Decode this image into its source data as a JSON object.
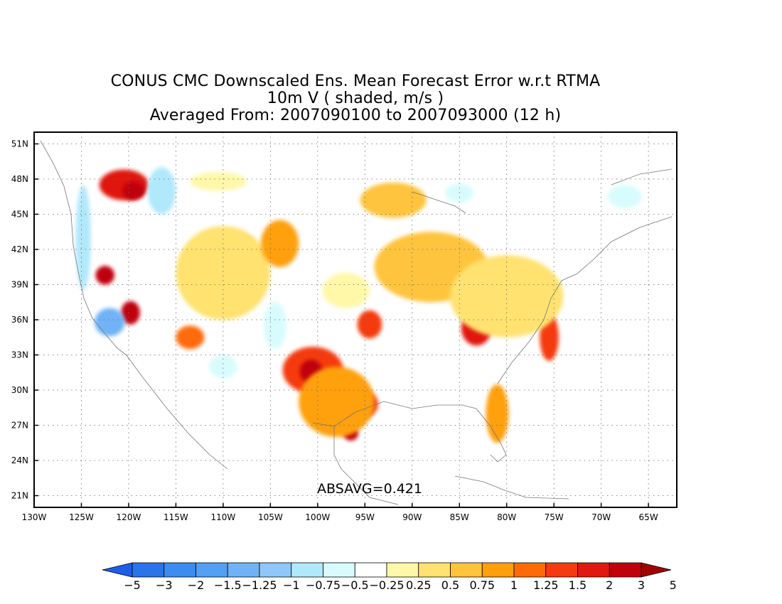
{
  "title": {
    "line1": "CONUS CMC Downscaled Ens. Mean Forecast Error w.r.t RTMA",
    "line2": "10m V ( shaded, m/s )",
    "line3": "Averaged From: 2007090100 to 2007093000 (12 h)"
  },
  "annotation": "ABSAVG=0.421",
  "map": {
    "lon_range": [
      -130,
      -62
    ],
    "lat_range": [
      20,
      52
    ],
    "lon_ticks": [
      {
        "value": -130,
        "label": "130W"
      },
      {
        "value": -125,
        "label": "125W"
      },
      {
        "value": -120,
        "label": "120W"
      },
      {
        "value": -115,
        "label": "115W"
      },
      {
        "value": -110,
        "label": "110W"
      },
      {
        "value": -105,
        "label": "105W"
      },
      {
        "value": -100,
        "label": "100W"
      },
      {
        "value": -95,
        "label": "95W"
      },
      {
        "value": -90,
        "label": "90W"
      },
      {
        "value": -85,
        "label": "85W"
      },
      {
        "value": -80,
        "label": "80W"
      },
      {
        "value": -75,
        "label": "75W"
      },
      {
        "value": -70,
        "label": "70W"
      },
      {
        "value": -65,
        "label": "65W"
      }
    ],
    "lat_ticks": [
      {
        "value": 51,
        "label": "51N"
      },
      {
        "value": 48,
        "label": "48N"
      },
      {
        "value": 45,
        "label": "45N"
      },
      {
        "value": 42,
        "label": "42N"
      },
      {
        "value": 39,
        "label": "39N"
      },
      {
        "value": 36,
        "label": "36N"
      },
      {
        "value": 33,
        "label": "33N"
      },
      {
        "value": 30,
        "label": "30N"
      },
      {
        "value": 27,
        "label": "27N"
      },
      {
        "value": 24,
        "label": "24N"
      },
      {
        "value": 21,
        "label": "21N"
      }
    ],
    "grid": "dotted",
    "field_blobs": [
      {
        "lon": -120.5,
        "lat": 47.5,
        "rx": 2.6,
        "ry": 1.3,
        "value": 1.5
      },
      {
        "lon": -119.5,
        "lat": 47.0,
        "rx": 1.2,
        "ry": 0.8,
        "value": 2
      },
      {
        "lon": -122.5,
        "lat": 39.8,
        "rx": 1.0,
        "ry": 0.8,
        "value": 2
      },
      {
        "lon": -119.8,
        "lat": 36.6,
        "rx": 1.0,
        "ry": 1.0,
        "value": 2
      },
      {
        "lon": -122.0,
        "lat": 35.8,
        "rx": 1.6,
        "ry": 1.2,
        "value": -1.5
      },
      {
        "lon": -124.8,
        "lat": 43.0,
        "rx": 0.8,
        "ry": 4.5,
        "value": -1.0
      },
      {
        "lon": -116.5,
        "lat": 47.0,
        "rx": 1.5,
        "ry": 2.0,
        "value": -1.0
      },
      {
        "lon": -100.5,
        "lat": 31.7,
        "rx": 3.2,
        "ry": 2.0,
        "value": 1.25
      },
      {
        "lon": -100.7,
        "lat": 31.6,
        "rx": 1.2,
        "ry": 1.0,
        "value": 2
      },
      {
        "lon": -95.8,
        "lat": 28.8,
        "rx": 2.2,
        "ry": 1.3,
        "value": 1.25
      },
      {
        "lon": -96.5,
        "lat": 26.3,
        "rx": 0.8,
        "ry": 0.6,
        "value": 2
      },
      {
        "lon": -98.0,
        "lat": 29.0,
        "rx": 4.0,
        "ry": 3.0,
        "value": 0.75
      },
      {
        "lon": -94.5,
        "lat": 35.6,
        "rx": 1.3,
        "ry": 1.2,
        "value": 1.25
      },
      {
        "lon": -83.2,
        "lat": 35.3,
        "rx": 1.6,
        "ry": 1.5,
        "value": 1.5
      },
      {
        "lon": -75.5,
        "lat": 34.5,
        "rx": 1.0,
        "ry": 2.0,
        "value": 1.25
      },
      {
        "lon": -81.0,
        "lat": 28.0,
        "rx": 1.2,
        "ry": 2.5,
        "value": 0.75
      },
      {
        "lon": -107.8,
        "lat": 42.0,
        "rx": 1.0,
        "ry": 1.2,
        "value": 1.0
      },
      {
        "lon": -113.5,
        "lat": 34.5,
        "rx": 1.5,
        "ry": 1.0,
        "value": 1.0
      },
      {
        "lon": -88.0,
        "lat": 40.5,
        "rx": 6.0,
        "ry": 3.0,
        "value": 0.5
      },
      {
        "lon": -80.0,
        "lat": 38.0,
        "rx": 6.0,
        "ry": 3.5,
        "value": 0.25
      },
      {
        "lon": -92.0,
        "lat": 46.2,
        "rx": 3.5,
        "ry": 1.5,
        "value": 0.5
      },
      {
        "lon": -110.0,
        "lat": 40.0,
        "rx": 5.0,
        "ry": 4.0,
        "value": 0.25
      },
      {
        "lon": -104.0,
        "lat": 42.5,
        "rx": 2.0,
        "ry": 2.0,
        "value": 0.75
      },
      {
        "lon": -104.5,
        "lat": 35.5,
        "rx": 1.2,
        "ry": 2.0,
        "value": -0.75
      },
      {
        "lon": -110.0,
        "lat": 32.0,
        "rx": 1.5,
        "ry": 1.0,
        "value": -0.75
      },
      {
        "lon": -85.0,
        "lat": 46.8,
        "rx": 1.5,
        "ry": 0.8,
        "value": -0.75
      },
      {
        "lon": -73.5,
        "lat": 45.2,
        "rx": 3.0,
        "ry": 0.8,
        "value": -0.5
      },
      {
        "lon": -67.5,
        "lat": 46.5,
        "rx": 1.8,
        "ry": 1.0,
        "value": -0.75
      },
      {
        "lon": -110.5,
        "lat": 47.8,
        "rx": 3.0,
        "ry": 0.8,
        "value": -0.25
      },
      {
        "lon": -97.0,
        "lat": 38.5,
        "rx": 2.5,
        "ry": 1.5,
        "value": -0.25
      }
    ]
  },
  "colorbar": {
    "colors": [
      "#1e5ee6",
      "#2a74ea",
      "#3a8cf0",
      "#52a0f3",
      "#6fb3f6",
      "#8ec8fa",
      "#b0e8fc",
      "#d8fcfe",
      "#ffffff",
      "#fff8a8",
      "#ffe270",
      "#ffc43c",
      "#ffa00a",
      "#ff6a08",
      "#f53a10",
      "#e0180e",
      "#c0000a",
      "#a00000"
    ],
    "labels": [
      "−5",
      "−3",
      "−2",
      "−1.5",
      "−1.25",
      "−1",
      "−0.75",
      "−0.5",
      "−0.25",
      "0.25",
      "0.5",
      "0.75",
      "1",
      "1.25",
      "1.5",
      "2",
      "3",
      "5"
    ],
    "levels": [
      -5,
      -3,
      -2,
      -1.5,
      -1.25,
      -1,
      -0.75,
      -0.5,
      -0.25,
      0.25,
      0.5,
      0.75,
      1,
      1.25,
      1.5,
      2,
      3,
      5
    ]
  }
}
